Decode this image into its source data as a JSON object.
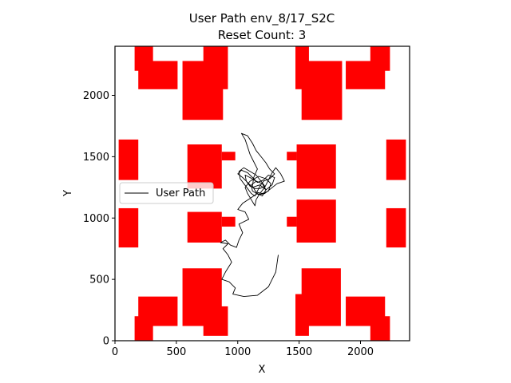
{
  "chart_data": {
    "type": "line",
    "title": "User Path env_8/17_S2C",
    "subtitle": "Reset Count: 3",
    "xlabel": "X",
    "ylabel": "Y",
    "xlim": [
      0,
      2400
    ],
    "ylim": [
      0,
      2400
    ],
    "xticks": [
      0,
      500,
      1000,
      1500,
      2000
    ],
    "yticks": [
      0,
      500,
      1000,
      1500,
      2000
    ],
    "grid": false,
    "legend": {
      "placement": "center-left",
      "entries": [
        "User Path"
      ]
    },
    "colors": {
      "obstacle": "#ff0000",
      "path": "#000000"
    },
    "obstacles": [
      {
        "x0": 160,
        "x1": 310,
        "y0": 2200,
        "y1": 2400
      },
      {
        "x0": 190,
        "x1": 510,
        "y0": 2050,
        "y1": 2280
      },
      {
        "x0": 550,
        "x1": 880,
        "y0": 1800,
        "y1": 2280
      },
      {
        "x0": 720,
        "x1": 920,
        "y0": 2050,
        "y1": 2400
      },
      {
        "x0": 1470,
        "x1": 1580,
        "y0": 2050,
        "y1": 2400
      },
      {
        "x0": 1520,
        "x1": 1850,
        "y0": 1800,
        "y1": 2280
      },
      {
        "x0": 1880,
        "x1": 2200,
        "y0": 2050,
        "y1": 2280
      },
      {
        "x0": 2080,
        "x1": 2240,
        "y0": 2200,
        "y1": 2400
      },
      {
        "x0": 30,
        "x1": 190,
        "y0": 1310,
        "y1": 1640
      },
      {
        "x0": 590,
        "x1": 870,
        "y0": 1240,
        "y1": 1600
      },
      {
        "x0": 870,
        "x1": 980,
        "y0": 1470,
        "y1": 1540
      },
      {
        "x0": 590,
        "x1": 870,
        "y0": 800,
        "y1": 1050
      },
      {
        "x0": 870,
        "x1": 980,
        "y0": 930,
        "y1": 1010
      },
      {
        "x0": 30,
        "x1": 190,
        "y0": 760,
        "y1": 1080
      },
      {
        "x0": 1400,
        "x1": 1480,
        "y0": 1470,
        "y1": 1540
      },
      {
        "x0": 1480,
        "x1": 1800,
        "y0": 1240,
        "y1": 1600
      },
      {
        "x0": 1400,
        "x1": 1480,
        "y0": 930,
        "y1": 1010
      },
      {
        "x0": 1480,
        "x1": 1800,
        "y0": 800,
        "y1": 1150
      },
      {
        "x0": 2210,
        "x1": 2370,
        "y0": 1310,
        "y1": 1640
      },
      {
        "x0": 2210,
        "x1": 2370,
        "y0": 760,
        "y1": 1080
      },
      {
        "x0": 550,
        "x1": 870,
        "y0": 120,
        "y1": 590
      },
      {
        "x0": 720,
        "x1": 920,
        "y0": 40,
        "y1": 280
      },
      {
        "x0": 190,
        "x1": 510,
        "y0": 120,
        "y1": 360
      },
      {
        "x0": 160,
        "x1": 310,
        "y0": 0,
        "y1": 200
      },
      {
        "x0": 1470,
        "x1": 1580,
        "y0": 40,
        "y1": 380
      },
      {
        "x0": 1520,
        "x1": 1840,
        "y0": 120,
        "y1": 590
      },
      {
        "x0": 1880,
        "x1": 2200,
        "y0": 120,
        "y1": 360
      },
      {
        "x0": 2080,
        "x1": 2240,
        "y0": 0,
        "y1": 200
      }
    ],
    "series": [
      {
        "name": "User Path",
        "points": [
          [
            1330,
            700
          ],
          [
            1310,
            560
          ],
          [
            1250,
            440
          ],
          [
            1160,
            370
          ],
          [
            1050,
            360
          ],
          [
            960,
            380
          ],
          [
            980,
            430
          ],
          [
            930,
            480
          ],
          [
            870,
            500
          ],
          [
            900,
            560
          ],
          [
            950,
            640
          ],
          [
            920,
            700
          ],
          [
            880,
            750
          ],
          [
            920,
            790
          ],
          [
            860,
            800
          ],
          [
            900,
            820
          ],
          [
            940,
            780
          ],
          [
            990,
            760
          ],
          [
            1010,
            820
          ],
          [
            1040,
            880
          ],
          [
            1010,
            950
          ],
          [
            1090,
            990
          ],
          [
            1060,
            1050
          ],
          [
            1000,
            1070
          ],
          [
            1040,
            1120
          ],
          [
            1100,
            1160
          ],
          [
            1160,
            1200
          ],
          [
            1200,
            1180
          ],
          [
            1230,
            1230
          ],
          [
            1180,
            1270
          ],
          [
            1120,
            1250
          ],
          [
            1080,
            1290
          ],
          [
            1040,
            1330
          ],
          [
            1000,
            1360
          ],
          [
            1030,
            1390
          ],
          [
            1080,
            1370
          ],
          [
            1120,
            1330
          ],
          [
            1160,
            1290
          ],
          [
            1210,
            1310
          ],
          [
            1250,
            1350
          ],
          [
            1300,
            1330
          ],
          [
            1280,
            1270
          ],
          [
            1230,
            1230
          ],
          [
            1200,
            1280
          ],
          [
            1150,
            1300
          ],
          [
            1110,
            1270
          ],
          [
            1120,
            1220
          ],
          [
            1170,
            1190
          ],
          [
            1220,
            1200
          ],
          [
            1270,
            1240
          ],
          [
            1320,
            1280
          ],
          [
            1380,
            1300
          ],
          [
            1350,
            1360
          ],
          [
            1310,
            1410
          ],
          [
            1280,
            1370
          ],
          [
            1250,
            1310
          ],
          [
            1220,
            1250
          ],
          [
            1180,
            1200
          ],
          [
            1150,
            1150
          ],
          [
            1140,
            1100
          ],
          [
            1110,
            1150
          ],
          [
            1080,
            1200
          ],
          [
            1060,
            1250
          ],
          [
            1100,
            1300
          ],
          [
            1170,
            1340
          ],
          [
            1230,
            1320
          ],
          [
            1270,
            1280
          ],
          [
            1250,
            1220
          ],
          [
            1200,
            1200
          ],
          [
            1150,
            1210
          ],
          [
            1120,
            1260
          ],
          [
            1130,
            1330
          ],
          [
            1160,
            1400
          ],
          [
            1130,
            1460
          ],
          [
            1100,
            1520
          ],
          [
            1080,
            1580
          ],
          [
            1060,
            1640
          ],
          [
            1030,
            1690
          ],
          [
            1080,
            1670
          ],
          [
            1120,
            1610
          ],
          [
            1150,
            1550
          ],
          [
            1190,
            1500
          ],
          [
            1230,
            1450
          ],
          [
            1260,
            1400
          ],
          [
            1300,
            1360
          ],
          [
            1260,
            1320
          ],
          [
            1210,
            1300
          ],
          [
            1180,
            1260
          ],
          [
            1160,
            1220
          ],
          [
            1140,
            1180
          ],
          [
            1110,
            1200
          ],
          [
            1080,
            1240
          ],
          [
            1050,
            1280
          ],
          [
            1020,
            1320
          ],
          [
            1010,
            1380
          ],
          [
            1050,
            1410
          ],
          [
            1100,
            1380
          ],
          [
            1150,
            1350
          ],
          [
            1190,
            1300
          ],
          [
            1220,
            1260
          ],
          [
            1180,
            1240
          ],
          [
            1140,
            1240
          ],
          [
            1100,
            1260
          ],
          [
            1070,
            1300
          ],
          [
            1060,
            1350
          ],
          [
            1100,
            1330
          ],
          [
            1150,
            1300
          ]
        ]
      }
    ]
  }
}
